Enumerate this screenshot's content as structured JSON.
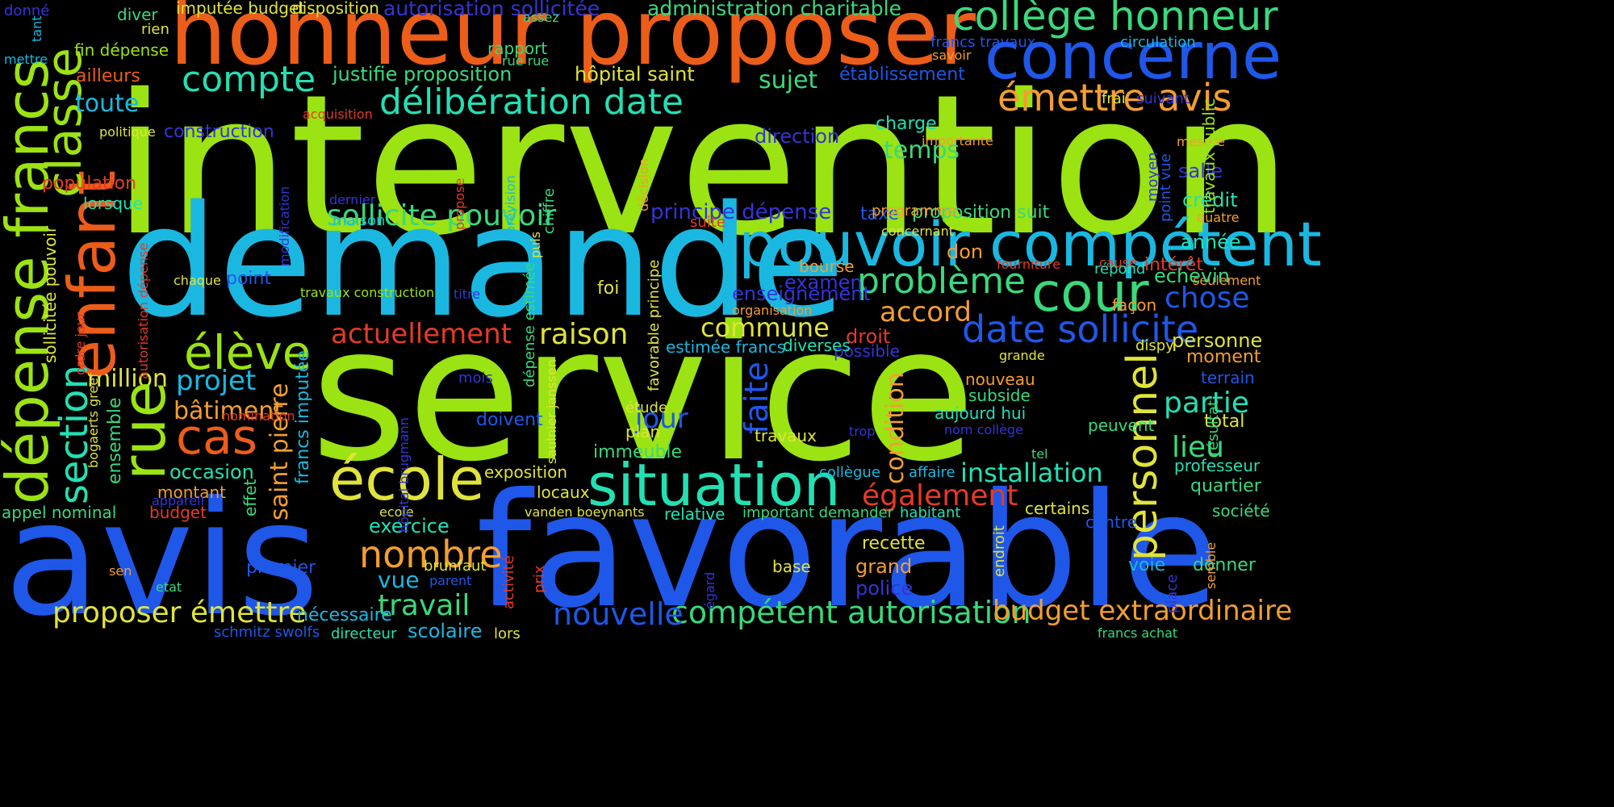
{
  "colors": {
    "background": "#000000",
    "lime": "#9be312",
    "cyan": "#1ab8e1",
    "blue": "#1f57e8",
    "orange": "#ec5d1a",
    "teal": "#23e0b3",
    "green": "#3ad87c",
    "yellow": "#e0e33c",
    "amber": "#f39e30",
    "red": "#e53a26",
    "indigo": "#3434d8"
  },
  "words": {
    "intervention": "intervention",
    "service": "service",
    "demande": "demande",
    "favorable": "favorable",
    "avis": "avis",
    "honneur_proposer": "honneur proposer",
    "concerne": "concerne",
    "college_honneur": "collège honneur",
    "pouvoir_competent": "pouvoir compétent",
    "enfant": "enfant",
    "depense_francs": "dépense francs",
    "classe": "classe",
    "situation": "situation",
    "ecole": "école",
    "cour": "cour",
    "date_sollicite": "date sollicite",
    "deliberation_date": "délibération date",
    "probleme": "problème",
    "eleve": "élève",
    "rue": "rue",
    "cas": "cas",
    "emettre_avis": "émettre avis",
    "compte": "compte",
    "sollicite_pouvoir": "sollicite pouvoir",
    "nombre": "nombre",
    "section": "section",
    "personnel": "personnel",
    "competent_autorisation": "compétent autorisation",
    "proposer_emettre": "proposer émettre",
    "budget_extraordinaire": "budget extraordinaire",
    "nouvelle": "nouvelle",
    "travail": "travail",
    "actuellement": "actuellement",
    "raison": "raison",
    "commune": "commune",
    "chose": "chose",
    "egalement": "également",
    "installation": "installation",
    "faite": "faite",
    "partie": "partie",
    "lieu": "lieu",
    "accord": "accord",
    "condition": "condition",
    "saint_pierre": "saint pierre",
    "jour": "jour",
    "projet": "projet",
    "million": "million",
    "batiment": "bâtiment",
    "administration_charitable": "administration charitable",
    "autorisation_sollicitee": "autorisation sollicitée",
    "imputee_budget": "imputée budget",
    "disposition": "disposition",
    "justifie_proposition": "justifie proposition",
    "hopital_saint": "hôpital saint",
    "etablissement": "établissement",
    "sujet": "sujet",
    "temps": "temps",
    "principe_depense": "principe dépense",
    "proposition_suit": "proposition suit",
    "taxe": "taxe",
    "occasion": "occasion",
    "montant": "montant",
    "budget": "budget",
    "appel_nominal": "appel nominal",
    "effet": "effet",
    "ensemble": "ensemble",
    "exercice": "exercice",
    "vue": "vue",
    "scolaire": "scolaire",
    "necessaire": "nécessaire",
    "schmitz_swolfs": "schmitz swolfs",
    "directeur": "directeur",
    "lors": "lors",
    "police": "police",
    "grand": "grand",
    "recette": "recette",
    "base": "base",
    "premier": "premier",
    "sen": "sen",
    "etat": "etat",
    "toute": "toute",
    "construction": "construction",
    "ailleurs": "ailleurs",
    "fin_depense": "fin dépense",
    "diver": "diver",
    "rien": "rien",
    "donne": "donné",
    "tant": "tant",
    "mettre": "mettre",
    "politique": "politique",
    "population": "population",
    "lorsque": "lorsque",
    "chaque": "chaque",
    "point": "point",
    "travaux_construction": "travaux construction",
    "titre": "titre",
    "nomination": "nomination",
    "appareil": "appareil",
    "acquisition": "acquisition",
    "direction": "direction",
    "charge": "charge",
    "importante": "importante",
    "dernier": "dernier",
    "maison": "maison",
    "suite": "suite",
    "programme": "programme",
    "concernant": "concernant",
    "annee": "année",
    "credit": "crédit",
    "salle": "salle",
    "quatre": "quatre",
    "seulement": "seulement",
    "interet": "intérêt",
    "cause": "cause",
    "mesure": "mesure",
    "frai": "frai",
    "suivant": "suivant",
    "circulation": "circulation",
    "savoir": "savoir",
    "francs_travaux": "francs travaux",
    "rapport": "rapport",
    "rue_rue": "rue rue",
    "assez": "assez",
    "don": "don",
    "bourse": "bourse",
    "examen": "examen",
    "enseignement": "enseignement",
    "organisation": "organisation",
    "foi": "foi",
    "fourniture": "fourniture",
    "repond": "répond",
    "echevin": "echevin",
    "facon": "façon",
    "personne": "personne",
    "moment": "moment",
    "terrain": "terrain",
    "dispy": "dispy",
    "grande": "grande",
    "droit": "droit",
    "possible": "possible",
    "diverses": "diverses",
    "estimee_francs": "estimée francs",
    "nouveau": "nouveau",
    "subside": "subside",
    "aujourd_hui": "aujourd hui",
    "nom_college": "nom collège",
    "trop": "trop",
    "tel": "tel",
    "peuvent": "peuvent",
    "total": "total",
    "professeur": "professeur",
    "quartier": "quartier",
    "societe": "société",
    "certains": "certains",
    "habitant": "habitant",
    "centre": "centre",
    "donner": "donner",
    "voie": "voie",
    "place": "place",
    "semble": "semble",
    "francs_achat": "francs achat",
    "endroit": "endroit",
    "affaire": "affaire",
    "collegue": "collègue",
    "important_demander": "important demander",
    "relative": "relative",
    "etude": "étude",
    "plan": "plan",
    "travaux": "travaux",
    "immeuble": "immeuble",
    "doivent": "doivent",
    "mois": "mois",
    "exposition": "exposition",
    "locaux": "locaux",
    "ecole_small": "ecole",
    "vanden_boeynants": "vanden boeynants",
    "brunfaut": "brunfaut",
    "parent": "parent",
    "bogaerts_greef": "bogaerts greef",
    "travaux_public": "travaux public",
    "resultat": "résultat",
    "point_vue": "point vue",
    "moyen": "moyen",
    "decision": "décision",
    "chiffre": "chiffre",
    "prevision": "prévision",
    "puis": "puis",
    "propose": "propose",
    "modification": "modification",
    "sollicitee_pouvoir": "sollicitée pouvoir",
    "ordre_jour": "ordre jour",
    "autorisation_depense": "autorisation dépense",
    "depense_estimee": "dépense estimée",
    "favorable_principe": "favorable principe",
    "saulnier_janssen": "saulnier janssen",
    "hopital_brugmann": "hôpital brugmann",
    "francs_imputee": "francs imputée",
    "activite": "activité",
    "prix": "prix",
    "egard": "égard"
  }
}
